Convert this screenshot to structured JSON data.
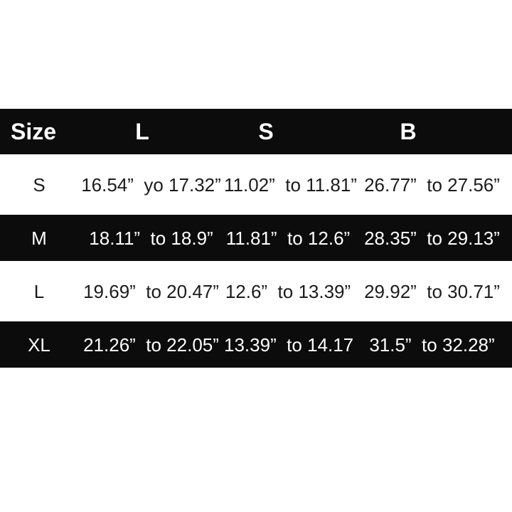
{
  "colors": {
    "background": "#ffffff",
    "band": "#0c0c0c",
    "header_text": "#ffffff",
    "row_text_dark_bg": "#ffffff",
    "row_text_light_bg": "#1c1c1c"
  },
  "chart_data": {
    "type": "table",
    "title": "",
    "columns": [
      "Size",
      "L",
      "S",
      "B"
    ],
    "rows": [
      [
        "S",
        "16.54”  yo 17.32”",
        "11.02”  to 11.81”",
        "26.77”  to 27.56”"
      ],
      [
        "M",
        "18.11”  to 18.9”",
        "11.81”  to 12.6”",
        "28.35”  to 29.13”"
      ],
      [
        "L",
        "19.69”  to 20.47”",
        "12.6”  to 13.39”",
        "29.92”  to 30.71”"
      ],
      [
        "XL",
        "21.26”  to 22.05”",
        "13.39”  to 14.17",
        "31.5”  to 32.28”"
      ]
    ],
    "layout": {
      "row_striping": [
        "dark-header",
        "light",
        "dark",
        "light",
        "dark"
      ],
      "units_shown_as": "inch quote marks"
    }
  }
}
